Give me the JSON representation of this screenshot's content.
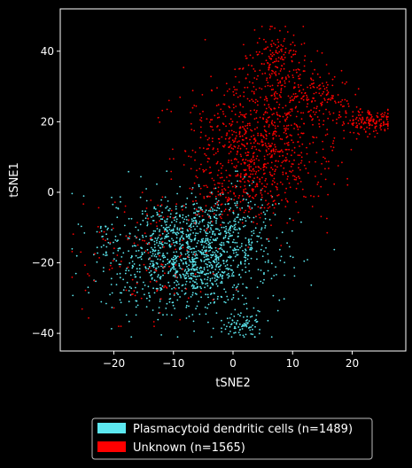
{
  "chart_data": {
    "type": "scatter",
    "title": "",
    "xlabel": "tSNE2",
    "ylabel": "tSNE1",
    "xlim": [
      -29,
      29
    ],
    "ylim": [
      -45,
      52
    ],
    "xticks": [
      -20,
      -10,
      0,
      10,
      20
    ],
    "yticks": [
      -40,
      -20,
      0,
      20,
      40
    ],
    "grid": false,
    "legend_position": "bottom-center",
    "background": "#000000",
    "series": [
      {
        "name": "Plasmacytoid dendritic cells (n=1489)",
        "color": "#5ce8f0",
        "count": 1489,
        "clusters": [
          {
            "cx": -7,
            "cy": -18,
            "sx": 6.5,
            "sy": 8,
            "w": 0.8
          },
          {
            "cx": -2,
            "cy": -10,
            "sx": 5,
            "sy": 5,
            "w": 0.12
          },
          {
            "cx": 2,
            "cy": -38,
            "sx": 1.6,
            "sy": 1.6,
            "w": 0.05
          },
          {
            "cx": -20,
            "cy": -14,
            "sx": 3.5,
            "sy": 6,
            "w": 0.03
          }
        ],
        "xrange": [
          -27,
          17
        ],
        "yrange": [
          -41,
          6
        ]
      },
      {
        "name": "Unknown (n=1565)",
        "color": "#ff0000",
        "count": 1565,
        "clusters": [
          {
            "cx": 4,
            "cy": 14,
            "sx": 6,
            "sy": 9,
            "w": 0.5
          },
          {
            "cx": 7,
            "cy": 37,
            "sx": 2.5,
            "sy": 5,
            "w": 0.12
          },
          {
            "cx": 23,
            "cy": 20,
            "sx": 2,
            "sy": 1.6,
            "w": 0.09
          },
          {
            "cx": 14,
            "cy": 27,
            "sx": 3,
            "sy": 4,
            "w": 0.09
          },
          {
            "cx": 0,
            "cy": 0,
            "sx": 6,
            "sy": 5,
            "w": 0.12
          },
          {
            "cx": -15,
            "cy": -20,
            "sx": 6,
            "sy": 9,
            "w": 0.08
          }
        ],
        "xrange": [
          -27,
          26
        ],
        "yrange": [
          -38,
          47
        ]
      }
    ]
  }
}
